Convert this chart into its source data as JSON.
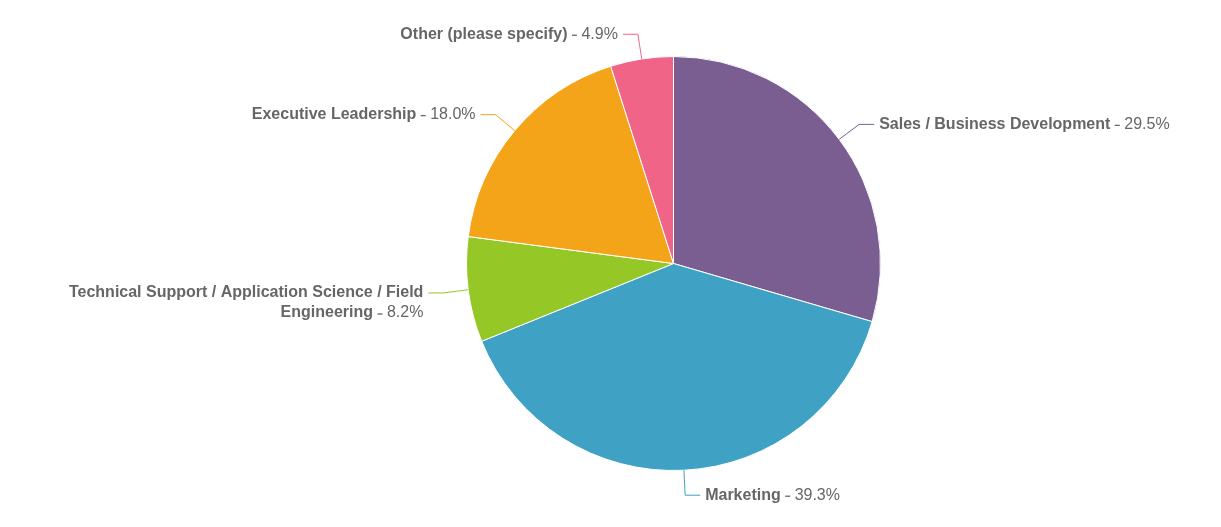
{
  "chart_data": {
    "type": "pie",
    "categories": [
      "Sales / Business Development",
      "Marketing",
      "Technical Support / Application Science / Field Engineering",
      "Executive Leadership",
      "Other (please specify)"
    ],
    "values": [
      29.5,
      39.3,
      8.2,
      18.0,
      4.9
    ],
    "value_labels": [
      "29.5%",
      "39.3%",
      "8.2%",
      "18.0%",
      "4.9%"
    ],
    "colors": [
      "#7b5e91",
      "#3fa2c4",
      "#95c727",
      "#f4a418",
      "#f06488"
    ],
    "legend": false
  }
}
